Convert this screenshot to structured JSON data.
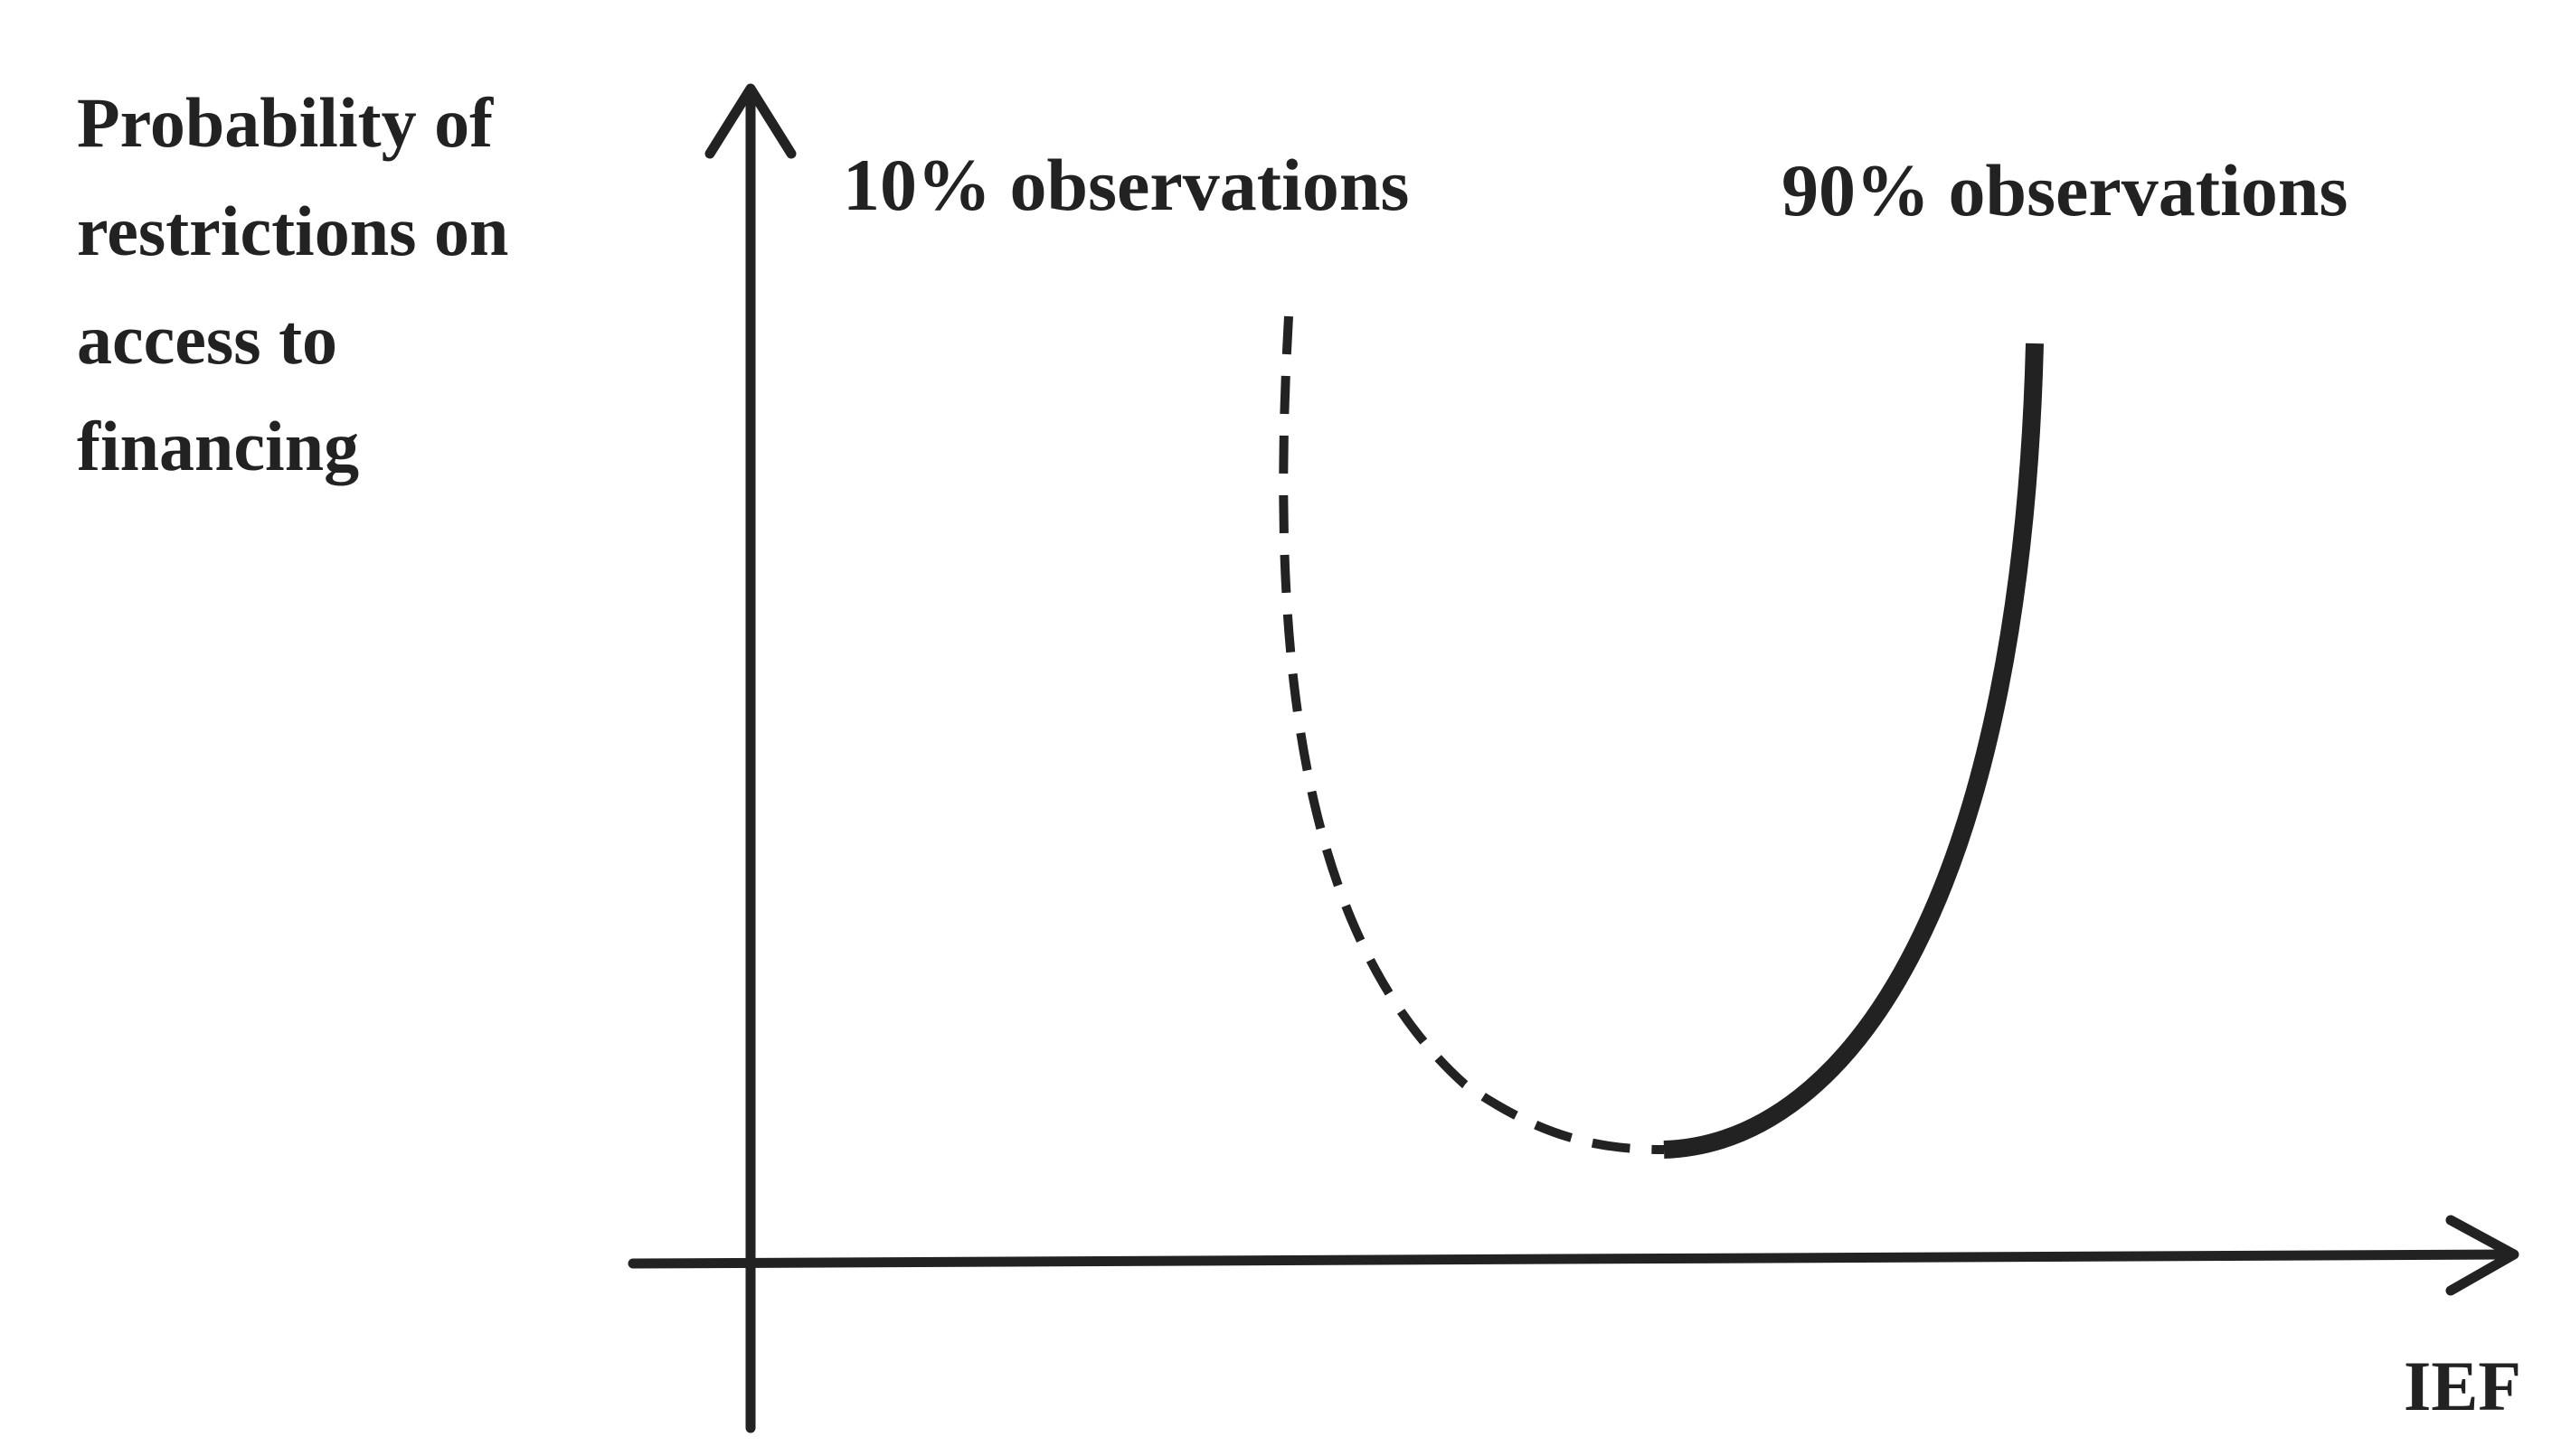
{
  "diagram": {
    "y_axis_label_lines": [
      "Probability of",
      "restrictions on",
      "access to",
      "financing"
    ],
    "x_axis_label": "IEF",
    "left_annotation": "10% observations",
    "right_annotation": "90% observations",
    "colors": {
      "ink": "#222222",
      "background": "#ffffff"
    }
  }
}
